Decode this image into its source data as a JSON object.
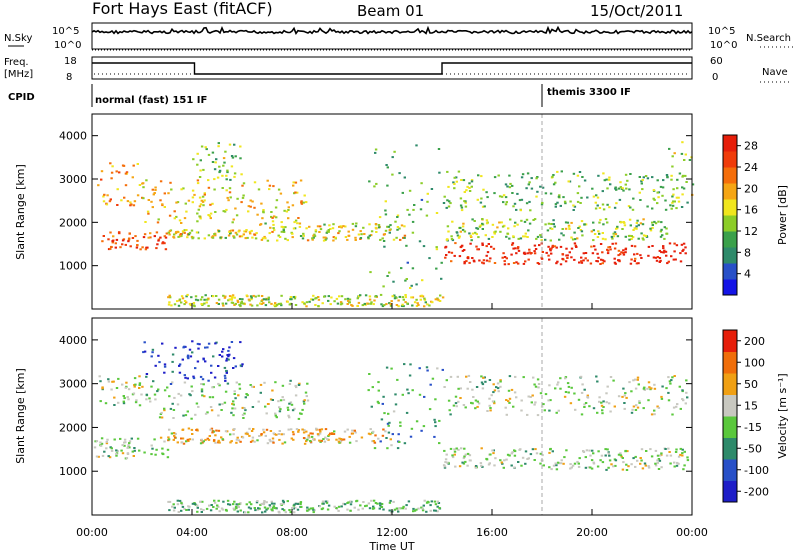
{
  "header": {
    "title": "Fort Hays East (fitACF)",
    "beam": "Beam 01",
    "date": "15/Oct/2011"
  },
  "top_panels": {
    "nsky_label": "N.Sky",
    "nsky_ticks": [
      "10^5",
      "10^0"
    ],
    "nsearch_label": "N.Search",
    "nsearch_ticks": [
      "10^5",
      "10^0"
    ],
    "freq_label": "Freq.",
    "freq_unit": "[MHz]",
    "freq_ticks": [
      "18",
      "8"
    ],
    "nave_label": "Nave",
    "nave_ticks": [
      "60",
      "0"
    ],
    "cpid_label": "CPID",
    "cpid_segments": [
      {
        "label": "normal (fast) 151 IF",
        "start_hour": 0
      },
      {
        "label": "themis 3300 IF",
        "start_hour": 18
      }
    ],
    "freq_series": [
      {
        "hour": 0,
        "value": "high"
      },
      {
        "hour": 4.1,
        "value": "low"
      },
      {
        "hour": 14.0,
        "value": "high"
      }
    ]
  },
  "chart_data": [
    {
      "type": "heatmap",
      "xlabel": "Time UT",
      "ylabel": "Slant Range [km]",
      "x_ticks": [
        "00:00",
        "04:00",
        "08:00",
        "12:00",
        "16:00",
        "20:00",
        "00:00"
      ],
      "y_ticks": [
        "1000",
        "2000",
        "3000",
        "4000"
      ],
      "ylim": [
        0,
        4500
      ],
      "colorbar": {
        "label": "Power [dB]",
        "ticks": [
          "4",
          "8",
          "12",
          "16",
          "20",
          "24",
          "28"
        ],
        "range": [
          0,
          30
        ],
        "colors": [
          "#1414e6",
          "#2850c8",
          "#2e8a6a",
          "#3aa04a",
          "#8ccd28",
          "#f0e61e",
          "#f5a514",
          "#f56e0a",
          "#f03c0a",
          "#e61e0a"
        ]
      },
      "bands": [
        {
          "x0": 0.3,
          "x1": 3.0,
          "y0": 1400,
          "y1": 1800,
          "level": 0.85
        },
        {
          "x0": 3.0,
          "x1": 6.5,
          "y0": 1650,
          "y1": 1850,
          "level": 0.55
        },
        {
          "x0": 0.2,
          "x1": 2.0,
          "y0": 2400,
          "y1": 3400,
          "level": 0.7
        },
        {
          "x0": 2.0,
          "x1": 8.6,
          "y0": 2000,
          "y1": 3000,
          "level": 0.6
        },
        {
          "x0": 6.5,
          "x1": 12.5,
          "y0": 1600,
          "y1": 2000,
          "level": 0.55
        },
        {
          "x0": 11.0,
          "x1": 14.0,
          "y0": 500,
          "y1": 3800,
          "level": 0.35
        },
        {
          "x0": 14.0,
          "x1": 23.8,
          "y0": 1050,
          "y1": 1550,
          "level": 0.95
        },
        {
          "x0": 14.0,
          "x1": 23.0,
          "y0": 1600,
          "y1": 2100,
          "level": 0.45
        },
        {
          "x0": 14.0,
          "x1": 23.8,
          "y0": 2300,
          "y1": 3200,
          "level": 0.4
        },
        {
          "x0": 4.0,
          "x1": 6.0,
          "y0": 3000,
          "y1": 3900,
          "level": 0.45
        },
        {
          "x0": 23.0,
          "x1": 24.0,
          "y0": 2500,
          "y1": 3900,
          "level": 0.5
        },
        {
          "x0": 3.0,
          "x1": 14.0,
          "y0": 80,
          "y1": 350,
          "level": 0.5
        }
      ]
    },
    {
      "type": "heatmap",
      "xlabel": "Time UT",
      "ylabel": "Slant Range [km]",
      "x_ticks": [
        "00:00",
        "04:00",
        "08:00",
        "12:00",
        "16:00",
        "20:00",
        "00:00"
      ],
      "y_ticks": [
        "1000",
        "2000",
        "3000",
        "4000"
      ],
      "ylim": [
        0,
        4500
      ],
      "colorbar": {
        "label": "Velocity [m s⁻¹]",
        "ticks": [
          "200",
          "100",
          "50",
          "15",
          "-15",
          "-50",
          "-100",
          "-200"
        ],
        "range": [
          -250,
          250
        ],
        "colors": [
          "#1e1ec8",
          "#2850c8",
          "#2e8a6a",
          "#5ac83c",
          "#c8c8c0",
          "#f0a014",
          "#f06e0a",
          "#e61e0a"
        ]
      },
      "bands": [
        {
          "x0": 0.0,
          "x1": 3.0,
          "y0": 1300,
          "y1": 1800,
          "level": 0.5
        },
        {
          "x0": 0.2,
          "x1": 2.5,
          "y0": 2500,
          "y1": 3200,
          "level": 0.5
        },
        {
          "x0": 2.5,
          "x1": 8.6,
          "y0": 2200,
          "y1": 3100,
          "level": 0.5
        },
        {
          "x0": 3.0,
          "x1": 12.0,
          "y0": 1650,
          "y1": 2000,
          "level": 0.65
        },
        {
          "x0": 2.0,
          "x1": 6.0,
          "y0": 3000,
          "y1": 4000,
          "level": 0.1
        },
        {
          "x0": 11.0,
          "x1": 14.0,
          "y0": 1500,
          "y1": 3500,
          "level": 0.35
        },
        {
          "x0": 14.0,
          "x1": 23.8,
          "y0": 1050,
          "y1": 1550,
          "level": 0.5
        },
        {
          "x0": 14.0,
          "x1": 23.8,
          "y0": 2300,
          "y1": 3200,
          "level": 0.5
        },
        {
          "x0": 3.0,
          "x1": 14.0,
          "y0": 80,
          "y1": 350,
          "level": 0.45
        }
      ]
    }
  ]
}
